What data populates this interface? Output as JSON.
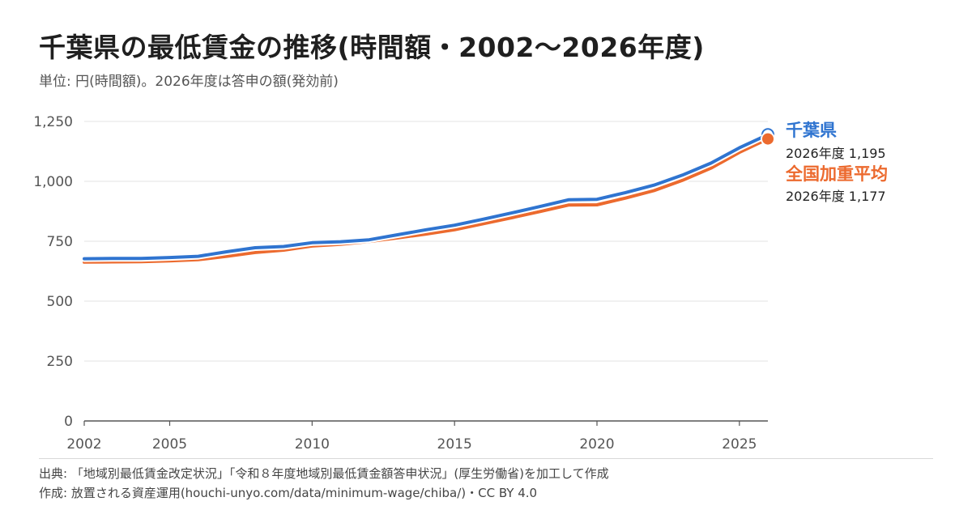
{
  "title": "千葉県の最低賃金の推移(時間額・2002〜2026年度)",
  "subtitle": "単位: 円(時間額)。2026年度は答申の額(発効前)",
  "footer": {
    "source": "出典: 「地域別最低賃金改定状況」「令和８年度地域別最低賃金額答申状況」(厚生労働省)を加工して作成",
    "author": "作成: 放置される資産運用(houchi-unyo.com/data/minimum-wage/chiba/)・CC BY 4.0"
  },
  "colors": {
    "chiba": "#2f74d0",
    "national": "#ec6a2e",
    "grid": "#e3e3e3",
    "axis": "#555555",
    "tick_text": "#555555"
  },
  "chart_data": {
    "type": "line",
    "x": [
      2002,
      2003,
      2004,
      2005,
      2006,
      2007,
      2008,
      2009,
      2010,
      2011,
      2012,
      2013,
      2014,
      2015,
      2016,
      2017,
      2018,
      2019,
      2020,
      2021,
      2022,
      2023,
      2024,
      2025,
      2026
    ],
    "series": [
      {
        "name": "千葉県",
        "color": "#2f74d0",
        "values": [
          677,
          678,
          678,
          682,
          687,
          706,
          723,
          728,
          744,
          748,
          756,
          777,
          798,
          817,
          842,
          868,
          895,
          923,
          925,
          953,
          984,
          1026,
          1076,
          1140,
          1195
        ],
        "end_label": "2026年度 1,195"
      },
      {
        "name": "全国加重平均",
        "color": "#ec6a2e",
        "values": [
          663,
          664,
          665,
          668,
          673,
          687,
          703,
          713,
          730,
          737,
          749,
          764,
          780,
          798,
          823,
          848,
          874,
          901,
          902,
          930,
          961,
          1004,
          1055,
          1121,
          1177
        ],
        "end_label": "2026年度 1,177"
      }
    ],
    "x_ticks": [
      {
        "value": 2002,
        "label": "2002"
      },
      {
        "value": 2005,
        "label": "2005"
      },
      {
        "value": 2010,
        "label": "2010"
      },
      {
        "value": 2015,
        "label": "2015"
      },
      {
        "value": 2020,
        "label": "2020"
      },
      {
        "value": 2025,
        "label": "2025"
      }
    ],
    "y_ticks": [
      {
        "value": 0,
        "label": "0"
      },
      {
        "value": 250,
        "label": "250"
      },
      {
        "value": 500,
        "label": "500"
      },
      {
        "value": 750,
        "label": "750"
      },
      {
        "value": 1000,
        "label": "1,000"
      },
      {
        "value": 1250,
        "label": "1,250"
      }
    ],
    "xlim": [
      2002,
      2026
    ],
    "ylim": [
      0,
      1250
    ],
    "grid": true,
    "legend": "end-of-line labels, right"
  }
}
